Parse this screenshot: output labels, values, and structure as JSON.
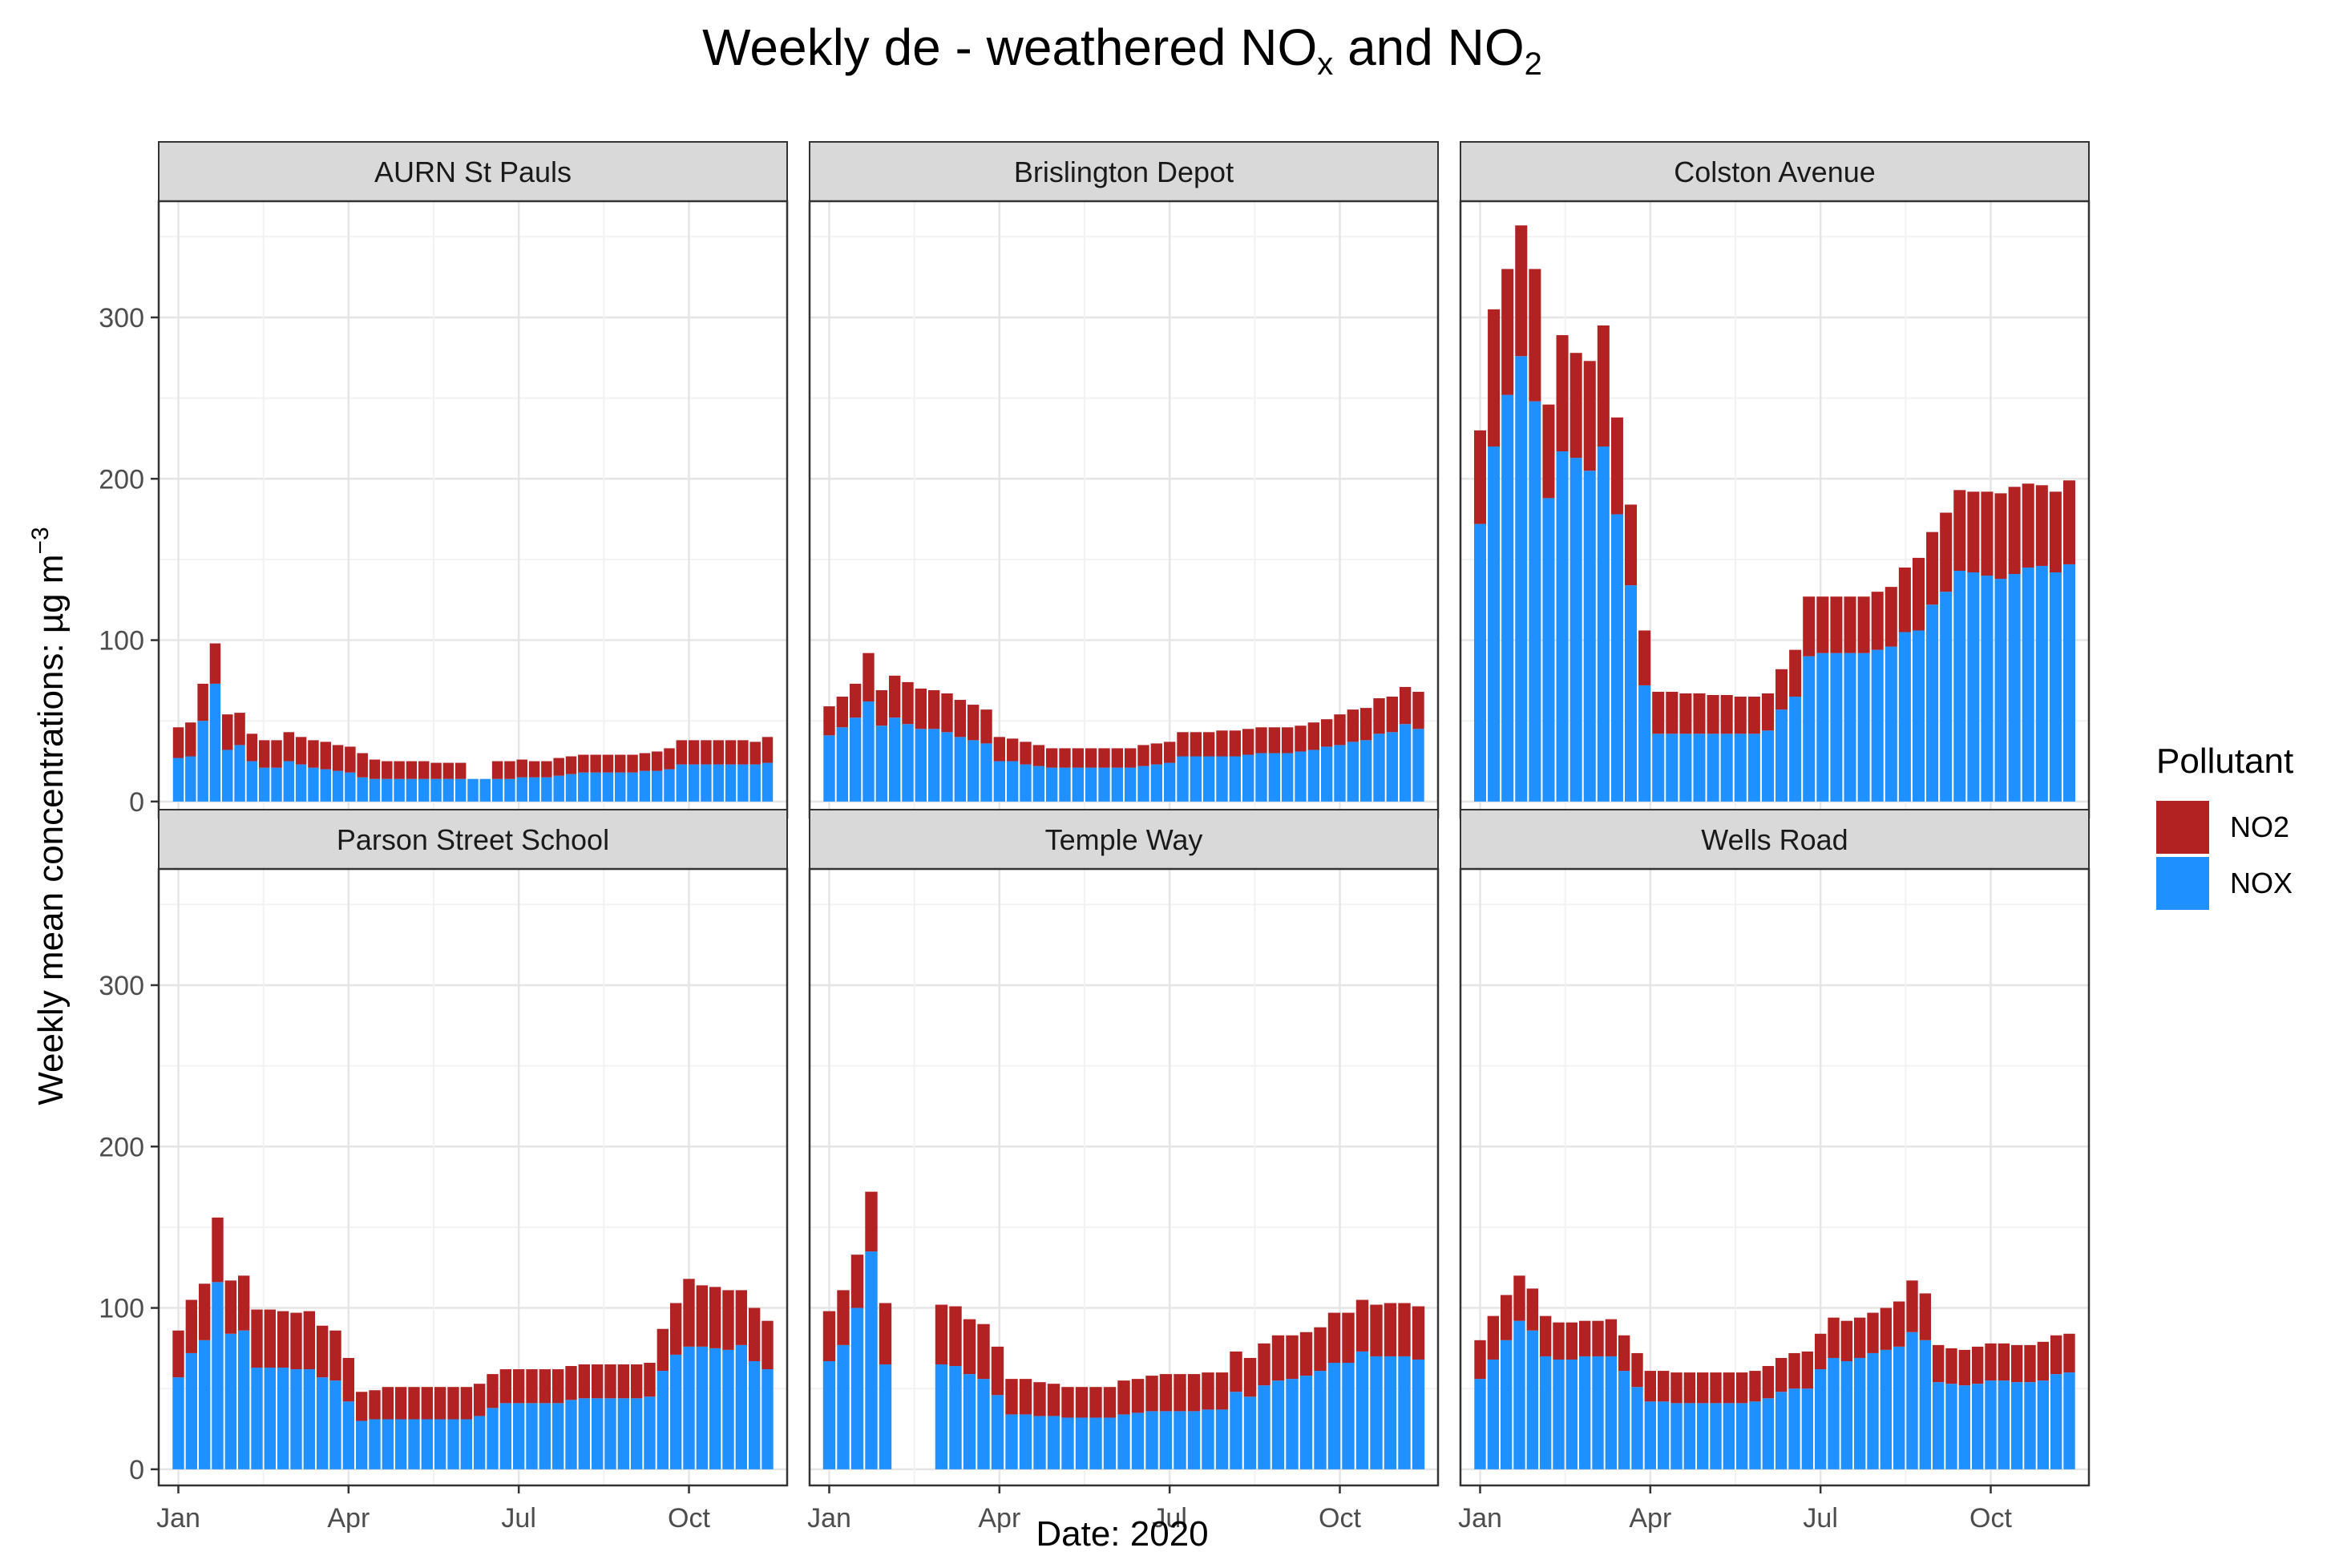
{
  "title": {
    "main": "Weekly de - weathered NO",
    "sub1": "x",
    "mid": " and NO",
    "sub2": "2"
  },
  "legend": {
    "title": "Pollutant",
    "items": [
      {
        "label": "NO2",
        "color": "#B22222"
      },
      {
        "label": "NOX",
        "color": "#1E90FF"
      }
    ]
  },
  "chart_data": {
    "type": "bar",
    "stacked": true,
    "facets": [
      "AURN St Pauls",
      "Brislington Depot",
      "Colston Avenue",
      "Parson Street School",
      "Temple Way",
      "Wells Road"
    ],
    "xlabel": "Date: 2020",
    "ylabel": "Weekly mean concentrations:  µg m",
    "ylabel_superscript": "−3",
    "x_ticks": [
      "Jan",
      "Apr",
      "Jul",
      "Oct"
    ],
    "y_ticks": [
      0,
      100,
      200,
      300
    ],
    "ylim": [
      -10,
      372
    ],
    "grid": true,
    "legend_position": "right",
    "weeks": 35,
    "panels": [
      {
        "name": "AURN St Pauls",
        "series": [
          {
            "name": "NOX",
            "values": [
              27,
              28,
              50,
              73,
              32,
              35,
              25,
              21,
              21,
              25,
              23,
              21,
              20,
              19,
              18,
              15,
              14,
              14,
              14,
              14,
              14,
              14,
              14,
              14,
              14,
              14,
              14,
              14,
              15,
              15,
              15,
              16,
              17,
              18,
              18,
              18,
              18,
              18,
              19,
              19,
              20,
              23,
              23,
              23,
              23,
              23,
              23,
              23,
              24
            ]
          },
          {
            "name": "NO2",
            "values": [
              19,
              21,
              23,
              25,
              22,
              20,
              17,
              17,
              17,
              18,
              17,
              17,
              17,
              16,
              16,
              15,
              12,
              11,
              11,
              11,
              11,
              10,
              10,
              10,
              0,
              0,
              11,
              11,
              11,
              10,
              10,
              11,
              11,
              11,
              11,
              11,
              11,
              11,
              11,
              12,
              13,
              15,
              15,
              15,
              15,
              15,
              15,
              14,
              16
            ]
          }
        ]
      },
      {
        "name": "Brislington Depot",
        "series": [
          {
            "name": "NOX",
            "values": [
              41,
              46,
              52,
              62,
              47,
              52,
              48,
              45,
              45,
              43,
              40,
              38,
              36,
              25,
              25,
              23,
              22,
              21,
              21,
              21,
              21,
              21,
              21,
              21,
              22,
              23,
              24,
              28,
              28,
              28,
              28,
              28,
              29,
              30,
              30,
              30,
              31,
              32,
              34,
              35,
              37,
              38,
              42,
              43,
              48,
              45
            ]
          },
          {
            "name": "NO2",
            "values": [
              18,
              19,
              21,
              30,
              22,
              26,
              26,
              25,
              24,
              24,
              23,
              22,
              21,
              15,
              14,
              14,
              13,
              12,
              12,
              12,
              12,
              12,
              12,
              12,
              13,
              13,
              13,
              15,
              15,
              15,
              16,
              16,
              16,
              16,
              16,
              16,
              16,
              17,
              17,
              19,
              20,
              20,
              22,
              22,
              23,
              23
            ]
          }
        ]
      },
      {
        "name": "Colston Avenue",
        "series": [
          {
            "name": "NOX",
            "values": [
              172,
              220,
              252,
              276,
              248,
              188,
              217,
              213,
              205,
              220,
              178,
              134,
              72,
              42,
              42,
              42,
              42,
              42,
              42,
              42,
              42,
              44,
              57,
              65,
              90,
              92,
              92,
              92,
              92,
              94,
              96,
              105,
              106,
              122,
              130,
              143,
              142,
              140,
              138,
              141,
              145,
              146,
              142,
              147
            ]
          },
          {
            "name": "NO2",
            "values": [
              58,
              85,
              78,
              81,
              82,
              58,
              72,
              65,
              68,
              75,
              60,
              50,
              34,
              26,
              26,
              25,
              25,
              24,
              24,
              23,
              23,
              23,
              25,
              29,
              37,
              35,
              35,
              35,
              35,
              36,
              37,
              40,
              45,
              45,
              49,
              50,
              50,
              52,
              53,
              54,
              52,
              50,
              50,
              52
            ]
          }
        ]
      },
      {
        "name": "Parson Street School",
        "series": [
          {
            "name": "NOX",
            "values": [
              57,
              72,
              80,
              116,
              84,
              86,
              63,
              63,
              63,
              62,
              62,
              57,
              55,
              42,
              30,
              31,
              31,
              31,
              31,
              31,
              31,
              31,
              31,
              33,
              38,
              41,
              41,
              41,
              41,
              41,
              43,
              44,
              44,
              44,
              44,
              44,
              45,
              61,
              71,
              76,
              76,
              75,
              74,
              77,
              67,
              62
            ]
          },
          {
            "name": "NO2",
            "values": [
              29,
              33,
              35,
              40,
              33,
              34,
              36,
              36,
              35,
              35,
              36,
              32,
              31,
              27,
              18,
              18,
              20,
              20,
              20,
              20,
              20,
              20,
              20,
              20,
              21,
              21,
              21,
              21,
              21,
              21,
              21,
              21,
              21,
              21,
              21,
              21,
              21,
              26,
              32,
              42,
              38,
              38,
              37,
              34,
              33,
              30
            ]
          }
        ]
      },
      {
        "name": "Temple Way",
        "series": [
          {
            "name": "NOX",
            "values": [
              67,
              77,
              100,
              135,
              65,
              0,
              0,
              0,
              65,
              64,
              59,
              56,
              46,
              34,
              34,
              33,
              33,
              32,
              32,
              32,
              32,
              34,
              35,
              36,
              36,
              36,
              36,
              37,
              37,
              48,
              45,
              52,
              55,
              56,
              58,
              61,
              66,
              66,
              73,
              70,
              70,
              70,
              68
            ]
          },
          {
            "name": "NO2",
            "values": [
              31,
              34,
              33,
              37,
              38,
              0,
              0,
              0,
              37,
              37,
              34,
              34,
              30,
              22,
              22,
              21,
              20,
              19,
              19,
              19,
              19,
              21,
              21,
              22,
              23,
              23,
              23,
              23,
              23,
              25,
              24,
              26,
              28,
              27,
              27,
              27,
              31,
              31,
              32,
              32,
              33,
              33,
              33
            ]
          }
        ]
      },
      {
        "name": "Wells Road",
        "series": [
          {
            "name": "NOX",
            "values": [
              56,
              68,
              80,
              92,
              86,
              70,
              68,
              68,
              70,
              70,
              70,
              61,
              51,
              42,
              42,
              41,
              41,
              41,
              41,
              41,
              41,
              42,
              44,
              48,
              50,
              50,
              62,
              69,
              67,
              69,
              72,
              74,
              76,
              85,
              80,
              54,
              53,
              52,
              53,
              55,
              55,
              54,
              54,
              55,
              59,
              60
            ]
          },
          {
            "name": "NO2",
            "values": [
              24,
              27,
              28,
              28,
              26,
              25,
              23,
              23,
              22,
              22,
              23,
              22,
              21,
              19,
              19,
              19,
              19,
              19,
              19,
              19,
              19,
              19,
              20,
              21,
              22,
              23,
              22,
              25,
              25,
              25,
              25,
              26,
              28,
              32,
              29,
              23,
              22,
              22,
              23,
              23,
              23,
              23,
              23,
              24,
              24,
              24
            ]
          }
        ]
      }
    ]
  }
}
